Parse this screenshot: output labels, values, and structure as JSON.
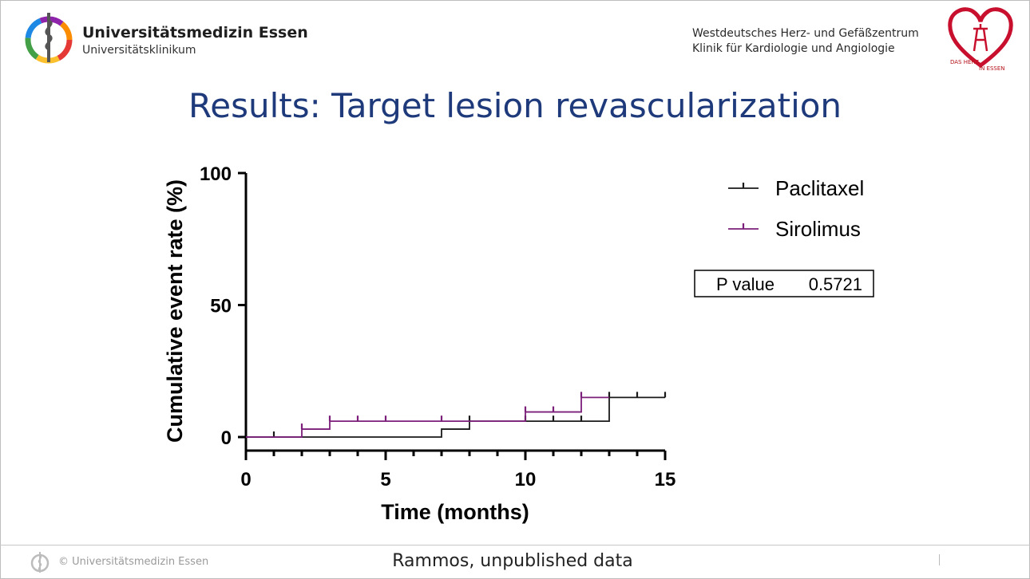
{
  "header": {
    "institution_name": "Universitätsmedizin Essen",
    "institution_sub": "Universitätsklinikum",
    "clinic_line1": "Westdeutsches Herz- und Gefäßzentrum",
    "clinic_line2": "Klinik für Kardiologie und Angiologie",
    "right_logo_text1": "DAS HERZ",
    "right_logo_text2": "IN ESSEN"
  },
  "slide": {
    "title": "Results: Target lesion revascularization"
  },
  "colors": {
    "title": "#1e3a7b",
    "paclitaxel": "#1a1a1a",
    "sirolimus": "#7b1f7a",
    "logo_heart": "#c8102e"
  },
  "chart_data": {
    "type": "line",
    "subtype": "kaplan-meier-step",
    "xlabel": "Time (months)",
    "ylabel": "Cumulative event rate (%)",
    "xlim": [
      0,
      15
    ],
    "ylim": [
      0,
      100
    ],
    "xticks": [
      0,
      5,
      10,
      15
    ],
    "yticks": [
      0,
      50,
      100
    ],
    "x_minor_step": 1,
    "legend_position": "top-right",
    "series": [
      {
        "name": "Paclitaxel",
        "color": "#1a1a1a",
        "steps": [
          [
            0,
            0
          ],
          [
            7,
            3
          ],
          [
            8,
            6
          ],
          [
            13,
            15
          ],
          [
            15,
            15
          ]
        ],
        "censor_x": [
          1,
          8,
          10,
          11,
          12,
          13,
          14,
          15
        ]
      },
      {
        "name": "Sirolimus",
        "color": "#7b1f7a",
        "steps": [
          [
            0,
            0
          ],
          [
            2,
            3
          ],
          [
            3,
            6
          ],
          [
            10,
            9.5
          ],
          [
            12,
            15
          ],
          [
            13,
            15
          ]
        ],
        "censor_x": [
          2,
          3,
          4,
          5,
          7,
          10,
          11,
          12
        ]
      }
    ],
    "annotation": {
      "label": "P value",
      "value": "0.5721"
    }
  },
  "footer": {
    "copyright": "© Universitätsmedizin Essen",
    "source": "Rammos, unpublished data"
  }
}
